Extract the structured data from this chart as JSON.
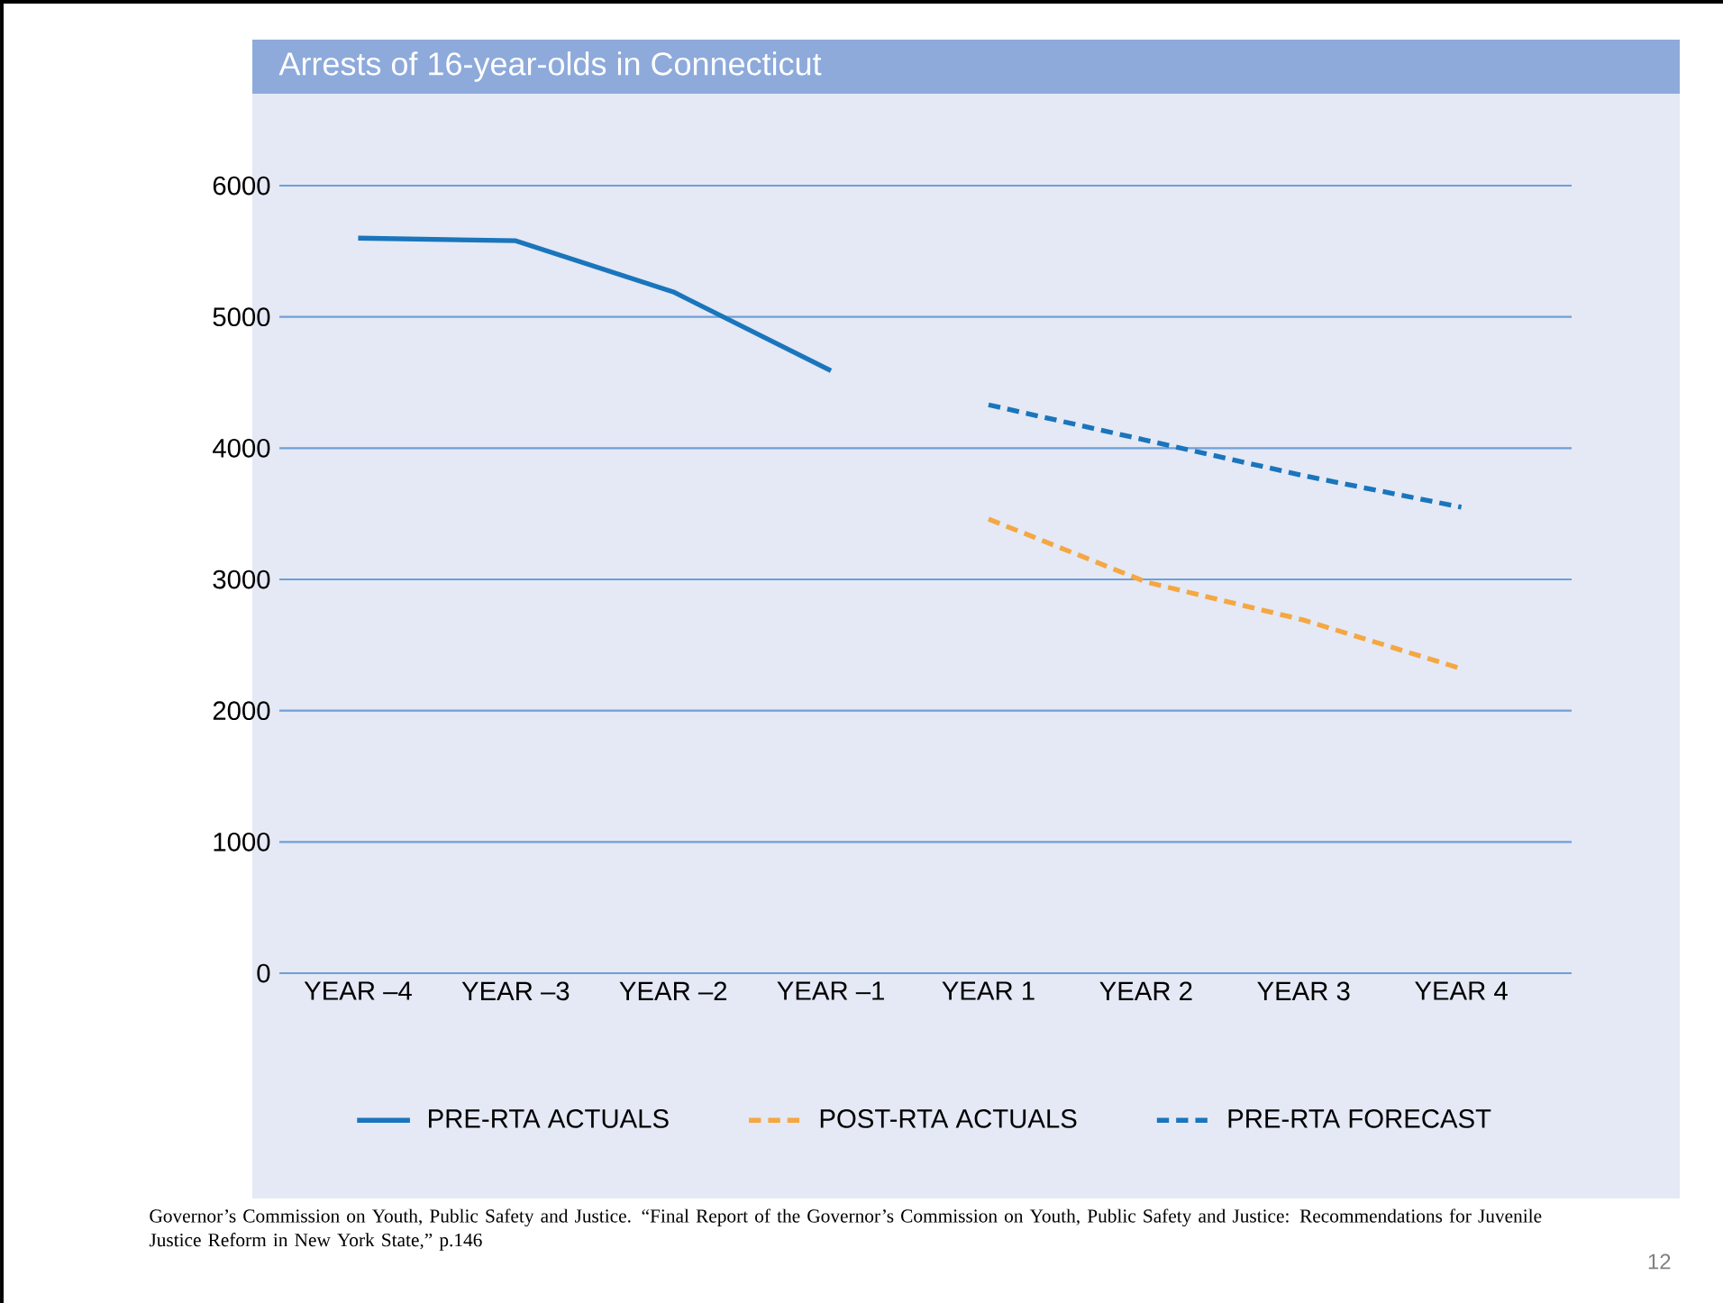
{
  "chart_data": {
    "type": "line",
    "title": "Arrests of 16-year-olds in Connecticut",
    "categories": [
      "YEAR –4",
      "YEAR –3",
      "YEAR –2",
      "YEAR –1",
      "YEAR 1",
      "YEAR 2",
      "YEAR 3",
      "YEAR 4"
    ],
    "series": [
      {
        "name": "PRE-RTA ACTUALS",
        "color": "#1a75bc",
        "line_style": "solid",
        "values": [
          5600,
          5580,
          5190,
          4590,
          null,
          null,
          null,
          null
        ]
      },
      {
        "name": "POST-RTA ACTUALS",
        "color": "#f5a742",
        "line_style": "dashed",
        "values": [
          null,
          null,
          null,
          null,
          3460,
          2980,
          2690,
          2320
        ]
      },
      {
        "name": "PRE-RTA FORECAST",
        "color": "#1a75bc",
        "line_style": "dashed",
        "values": [
          null,
          null,
          null,
          null,
          4330,
          4060,
          3790,
          3550
        ]
      }
    ],
    "ylim": [
      0,
      6000
    ],
    "yticks": [
      0,
      1000,
      2000,
      3000,
      4000,
      5000,
      6000
    ],
    "grid": "y",
    "legend": "bottom",
    "annotations": [
      "Governor’s Commission on Youth, Public Safety and Justice. “Final Report of the Governor’s Commission on Youth, Public Safety and Justice: Recommendations for Juvenile Justice Reform in New York State,” p.146",
      "12"
    ]
  }
}
